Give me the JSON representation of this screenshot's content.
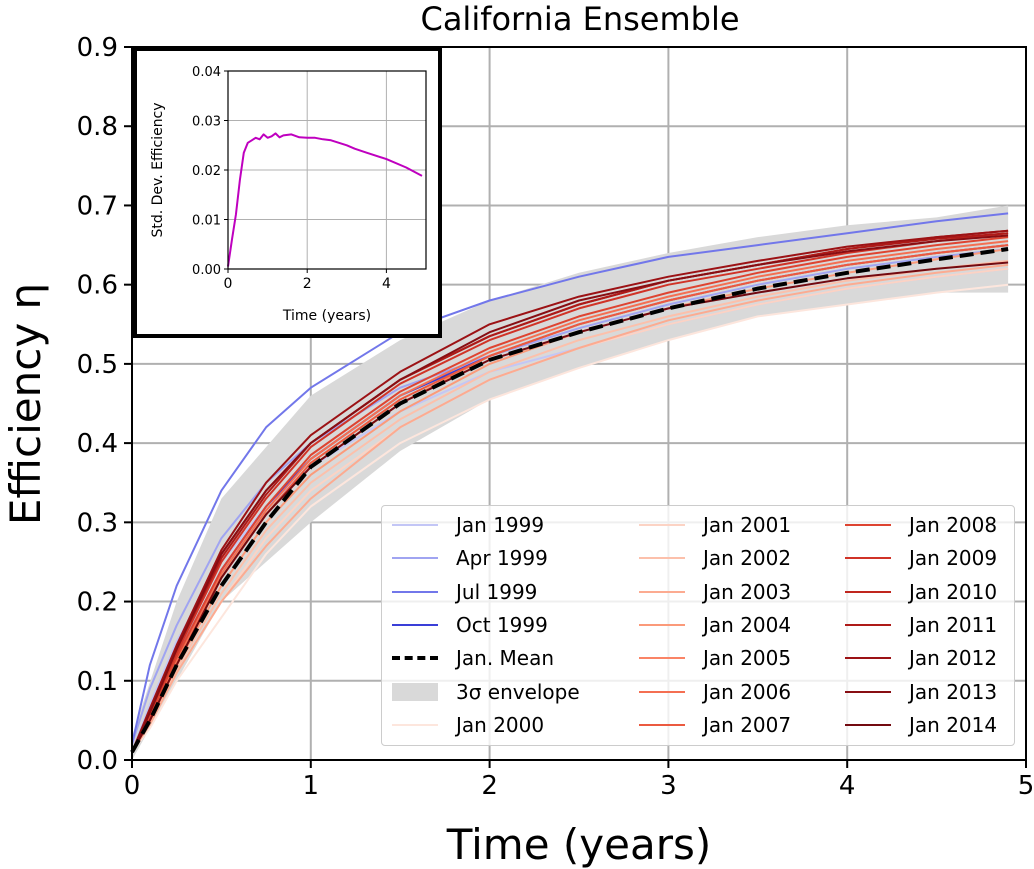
{
  "chart_data": [
    {
      "type": "line",
      "title": "California Ensemble",
      "xlabel": "Time (years)",
      "ylabel": "Efficiency η",
      "xlim": [
        0,
        5
      ],
      "ylim": [
        0,
        0.9
      ],
      "x_ticks": [
        "0",
        "1",
        "2",
        "3",
        "4",
        "5"
      ],
      "y_ticks": [
        "0.0",
        "0.1",
        "0.2",
        "0.3",
        "0.4",
        "0.5",
        "0.6",
        "0.7",
        "0.8",
        "0.9"
      ],
      "grid": true,
      "legend_placement": "lower-right",
      "envelope": {
        "name": "3σ envelope",
        "color": "#d9d9d9",
        "x": [
          0,
          0.25,
          0.5,
          1,
          1.5,
          2,
          2.5,
          3,
          3.5,
          4,
          4.5,
          4.9
        ],
        "upper": [
          0.03,
          0.2,
          0.33,
          0.46,
          0.53,
          0.58,
          0.615,
          0.64,
          0.66,
          0.675,
          0.685,
          0.7
        ],
        "lower": [
          0.0,
          0.1,
          0.2,
          0.3,
          0.39,
          0.455,
          0.495,
          0.53,
          0.56,
          0.575,
          0.59,
          0.59
        ]
      },
      "series": [
        {
          "name": "Jan 1999",
          "color": "#c3c6f6",
          "x": [
            0,
            0.1,
            0.25,
            0.5,
            0.75,
            1,
            1.5,
            2,
            2.5,
            3,
            3.5,
            4,
            4.5,
            4.9
          ],
          "values": [
            0.01,
            0.07,
            0.15,
            0.25,
            0.32,
            0.37,
            0.44,
            0.49,
            0.52,
            0.55,
            0.575,
            0.595,
            0.61,
            0.62
          ]
        },
        {
          "name": "Apr 1999",
          "color": "#a0a4f1",
          "x": [
            0,
            0.1,
            0.25,
            0.5,
            0.75,
            1,
            1.5,
            2,
            2.5,
            3,
            3.5,
            4,
            4.5,
            4.9
          ],
          "values": [
            0.02,
            0.09,
            0.17,
            0.28,
            0.35,
            0.4,
            0.47,
            0.51,
            0.545,
            0.575,
            0.6,
            0.62,
            0.635,
            0.645
          ]
        },
        {
          "name": "Jul 1999",
          "color": "#7277ea",
          "x": [
            0,
            0.1,
            0.25,
            0.5,
            0.75,
            1,
            1.5,
            2,
            2.5,
            3,
            3.5,
            4,
            4.5,
            4.9
          ],
          "values": [
            0.02,
            0.12,
            0.22,
            0.34,
            0.42,
            0.47,
            0.54,
            0.58,
            0.61,
            0.635,
            0.65,
            0.665,
            0.68,
            0.69
          ]
        },
        {
          "name": "Oct 1999",
          "color": "#3a3fd8",
          "x": [
            0,
            0.1,
            0.25,
            0.5,
            0.75,
            1,
            1.5,
            2,
            2.5,
            3,
            3.5,
            4,
            4.5,
            4.9
          ],
          "values": [
            0.01,
            0.06,
            0.13,
            0.24,
            0.32,
            0.38,
            0.46,
            0.51,
            0.55,
            0.58,
            0.605,
            0.625,
            0.64,
            0.65
          ]
        },
        {
          "name": "Jan. Mean",
          "color": "#000000",
          "dashed": true,
          "x": [
            0,
            0.1,
            0.25,
            0.5,
            0.75,
            1,
            1.5,
            2,
            2.5,
            3,
            3.5,
            4,
            4.5,
            4.9
          ],
          "values": [
            0.01,
            0.05,
            0.12,
            0.22,
            0.3,
            0.37,
            0.45,
            0.505,
            0.54,
            0.57,
            0.595,
            0.615,
            0.632,
            0.645
          ]
        },
        {
          "name": "Jan 2000",
          "color": "#fde6dd",
          "x": [
            0,
            0.1,
            0.25,
            0.5,
            0.75,
            1,
            1.5,
            2,
            2.5,
            3,
            3.5,
            4,
            4.5,
            4.9
          ],
          "values": [
            0.01,
            0.04,
            0.1,
            0.18,
            0.26,
            0.32,
            0.4,
            0.455,
            0.495,
            0.53,
            0.56,
            0.575,
            0.59,
            0.6
          ]
        },
        {
          "name": "Jan 2001",
          "color": "#fcd3c4",
          "x": [
            0,
            0.1,
            0.25,
            0.5,
            0.75,
            1,
            1.5,
            2,
            2.5,
            3,
            3.5,
            4,
            4.5,
            4.9
          ],
          "values": [
            0.01,
            0.045,
            0.11,
            0.2,
            0.28,
            0.34,
            0.42,
            0.48,
            0.52,
            0.55,
            0.575,
            0.595,
            0.61,
            0.62
          ]
        },
        {
          "name": "Jan 2002",
          "color": "#fcc0ab",
          "x": [
            0,
            0.1,
            0.25,
            0.5,
            0.75,
            1,
            1.5,
            2,
            2.5,
            3,
            3.5,
            4,
            4.5,
            4.9
          ],
          "values": [
            0.01,
            0.05,
            0.115,
            0.21,
            0.29,
            0.35,
            0.43,
            0.49,
            0.53,
            0.56,
            0.585,
            0.605,
            0.62,
            0.63
          ]
        },
        {
          "name": "Jan 2003",
          "color": "#fcab91",
          "x": [
            0,
            0.1,
            0.25,
            0.5,
            0.75,
            1,
            1.5,
            2,
            2.5,
            3,
            3.5,
            4,
            4.5,
            4.9
          ],
          "values": [
            0.01,
            0.045,
            0.11,
            0.2,
            0.27,
            0.33,
            0.42,
            0.48,
            0.52,
            0.555,
            0.58,
            0.6,
            0.615,
            0.625
          ]
        },
        {
          "name": "Jan 2004",
          "color": "#fb9a7a",
          "x": [
            0,
            0.1,
            0.25,
            0.5,
            0.75,
            1,
            1.5,
            2,
            2.5,
            3,
            3.5,
            4,
            4.5,
            4.9
          ],
          "values": [
            0.01,
            0.05,
            0.12,
            0.22,
            0.3,
            0.36,
            0.44,
            0.5,
            0.54,
            0.57,
            0.595,
            0.615,
            0.632,
            0.645
          ]
        },
        {
          "name": "Jan 2005",
          "color": "#fa8466",
          "x": [
            0,
            0.1,
            0.25,
            0.5,
            0.75,
            1,
            1.5,
            2,
            2.5,
            3,
            3.5,
            4,
            4.5,
            4.9
          ],
          "values": [
            0.01,
            0.05,
            0.12,
            0.23,
            0.31,
            0.37,
            0.45,
            0.51,
            0.55,
            0.58,
            0.605,
            0.625,
            0.64,
            0.65
          ]
        },
        {
          "name": "Jan 2006",
          "color": "#f46f52",
          "x": [
            0,
            0.1,
            0.25,
            0.5,
            0.75,
            1,
            1.5,
            2,
            2.5,
            3,
            3.5,
            4,
            4.5,
            4.9
          ],
          "values": [
            0.01,
            0.055,
            0.125,
            0.235,
            0.315,
            0.38,
            0.46,
            0.515,
            0.555,
            0.585,
            0.61,
            0.63,
            0.645,
            0.655
          ]
        },
        {
          "name": "Jan 2007",
          "color": "#eb5a40",
          "x": [
            0,
            0.1,
            0.25,
            0.5,
            0.75,
            1,
            1.5,
            2,
            2.5,
            3,
            3.5,
            4,
            4.5,
            4.9
          ],
          "values": [
            0.01,
            0.05,
            0.12,
            0.23,
            0.31,
            0.375,
            0.455,
            0.51,
            0.55,
            0.58,
            0.605,
            0.625,
            0.64,
            0.65
          ]
        },
        {
          "name": "Jan 2008",
          "color": "#de4431",
          "x": [
            0,
            0.1,
            0.25,
            0.5,
            0.75,
            1,
            1.5,
            2,
            2.5,
            3,
            3.5,
            4,
            4.5,
            4.9
          ],
          "values": [
            0.01,
            0.055,
            0.13,
            0.24,
            0.32,
            0.385,
            0.465,
            0.52,
            0.56,
            0.59,
            0.615,
            0.635,
            0.65,
            0.66
          ]
        },
        {
          "name": "Jan 2009",
          "color": "#d03327",
          "x": [
            0,
            0.1,
            0.25,
            0.5,
            0.75,
            1,
            1.5,
            2,
            2.5,
            3,
            3.5,
            4,
            4.5,
            4.9
          ],
          "values": [
            0.01,
            0.06,
            0.135,
            0.25,
            0.33,
            0.395,
            0.475,
            0.53,
            0.57,
            0.6,
            0.62,
            0.64,
            0.655,
            0.665
          ]
        },
        {
          "name": "Jan 2010",
          "color": "#c0261e",
          "x": [
            0,
            0.1,
            0.25,
            0.5,
            0.75,
            1,
            1.5,
            2,
            2.5,
            3,
            3.5,
            4,
            4.5,
            4.9
          ],
          "values": [
            0.01,
            0.06,
            0.14,
            0.26,
            0.34,
            0.4,
            0.48,
            0.535,
            0.575,
            0.605,
            0.625,
            0.645,
            0.66,
            0.668
          ]
        },
        {
          "name": "Jan 2011",
          "color": "#ae1a18",
          "x": [
            0,
            0.1,
            0.25,
            0.5,
            0.75,
            1,
            1.5,
            2,
            2.5,
            3,
            3.5,
            4,
            4.5,
            4.9
          ],
          "values": [
            0.01,
            0.06,
            0.14,
            0.255,
            0.335,
            0.4,
            0.48,
            0.535,
            0.575,
            0.605,
            0.625,
            0.645,
            0.658,
            0.665
          ]
        },
        {
          "name": "Jan 2012",
          "color": "#9c1215",
          "x": [
            0,
            0.1,
            0.25,
            0.5,
            0.75,
            1,
            1.5,
            2,
            2.5,
            3,
            3.5,
            4,
            4.5,
            4.9
          ],
          "values": [
            0.01,
            0.065,
            0.145,
            0.265,
            0.35,
            0.41,
            0.49,
            0.55,
            0.585,
            0.61,
            0.63,
            0.648,
            0.66,
            0.668
          ]
        },
        {
          "name": "Jan 2013",
          "color": "#880e13",
          "x": [
            0,
            0.1,
            0.25,
            0.5,
            0.75,
            1,
            1.5,
            2,
            2.5,
            3,
            3.5,
            4,
            4.5,
            4.9
          ],
          "values": [
            0.01,
            0.06,
            0.14,
            0.26,
            0.34,
            0.4,
            0.48,
            0.54,
            0.58,
            0.605,
            0.625,
            0.642,
            0.655,
            0.662
          ]
        },
        {
          "name": "Jan 2014",
          "color": "#730a10",
          "x": [
            0,
            0.1,
            0.25,
            0.5,
            0.75,
            1,
            1.5,
            2,
            2.5,
            3,
            3.5,
            4,
            4.5,
            4.9
          ],
          "values": [
            0.01,
            0.05,
            0.12,
            0.23,
            0.31,
            0.37,
            0.45,
            0.505,
            0.54,
            0.57,
            0.59,
            0.608,
            0.62,
            0.628
          ]
        }
      ]
    },
    {
      "type": "line",
      "title": "",
      "xlabel": "Time (years)",
      "ylabel": "Std. Dev. Efficiency",
      "xlim": [
        0,
        5
      ],
      "ylim": [
        0,
        0.04
      ],
      "x_ticks": [
        "0",
        "2",
        "4"
      ],
      "y_ticks": [
        "0.00",
        "0.01",
        "0.02",
        "0.03",
        "0.04"
      ],
      "grid": true,
      "series": [
        {
          "color": "#bf00bf",
          "x": [
            0,
            0.1,
            0.2,
            0.3,
            0.4,
            0.5,
            0.6,
            0.7,
            0.8,
            0.9,
            1.0,
            1.1,
            1.2,
            1.3,
            1.4,
            1.6,
            1.8,
            2.0,
            2.2,
            2.4,
            2.6,
            2.8,
            3.0,
            3.2,
            3.5,
            4.0,
            4.5,
            4.9
          ],
          "values": [
            0.0005,
            0.006,
            0.011,
            0.018,
            0.0235,
            0.0255,
            0.026,
            0.0265,
            0.0262,
            0.0272,
            0.0265,
            0.0268,
            0.0274,
            0.0266,
            0.027,
            0.0272,
            0.0266,
            0.0265,
            0.0265,
            0.0262,
            0.026,
            0.0255,
            0.025,
            0.0243,
            0.0235,
            0.0222,
            0.0205,
            0.0188
          ]
        }
      ]
    }
  ]
}
